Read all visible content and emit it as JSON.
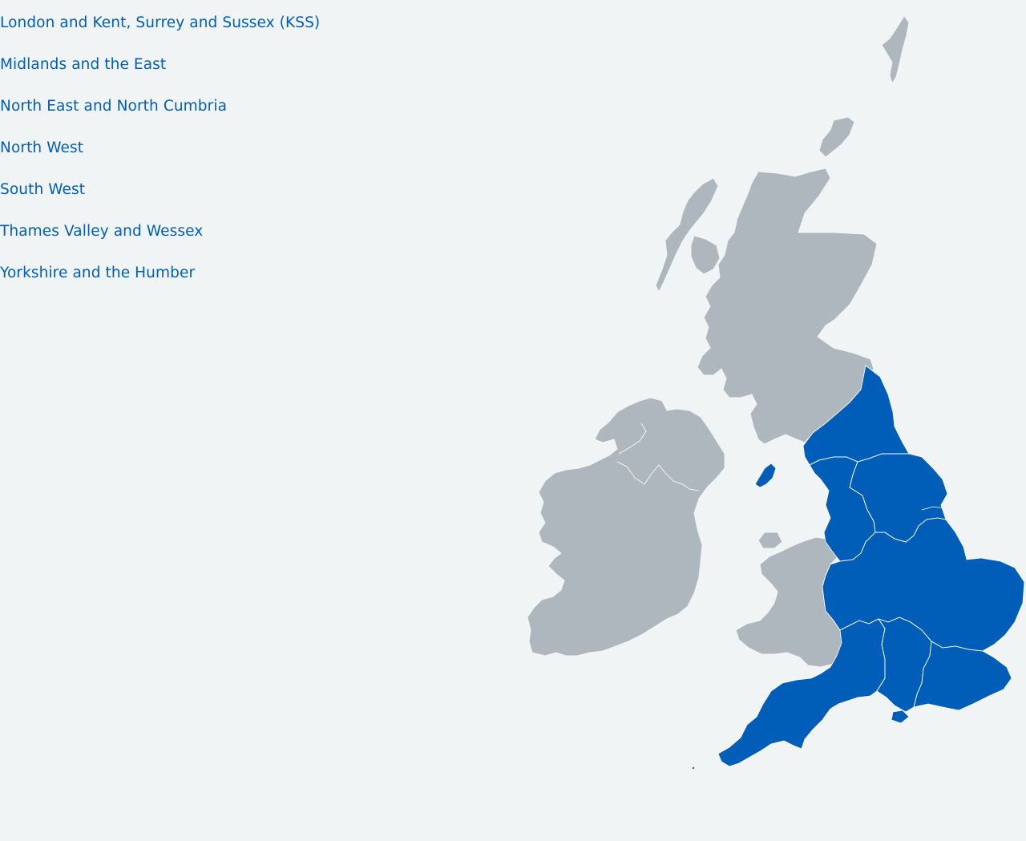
{
  "regions": [
    {
      "id": "london-kss",
      "label": "London and Kent, Surrey and Sussex (KSS)"
    },
    {
      "id": "midlands-east",
      "label": "Midlands and the East"
    },
    {
      "id": "north-east-cumbria",
      "label": "North East and North Cumbria"
    },
    {
      "id": "north-west",
      "label": "North West"
    },
    {
      "id": "south-west",
      "label": "South West"
    },
    {
      "id": "thames-valley-wessex",
      "label": "Thames Valley and Wessex"
    },
    {
      "id": "yorkshire-humber",
      "label": "Yorkshire and the Humber"
    }
  ],
  "colors": {
    "link": "#005eb8",
    "highlighted_region": "#005eb8",
    "other_land": "#aeb7bd",
    "background": "#f0f4f5"
  }
}
